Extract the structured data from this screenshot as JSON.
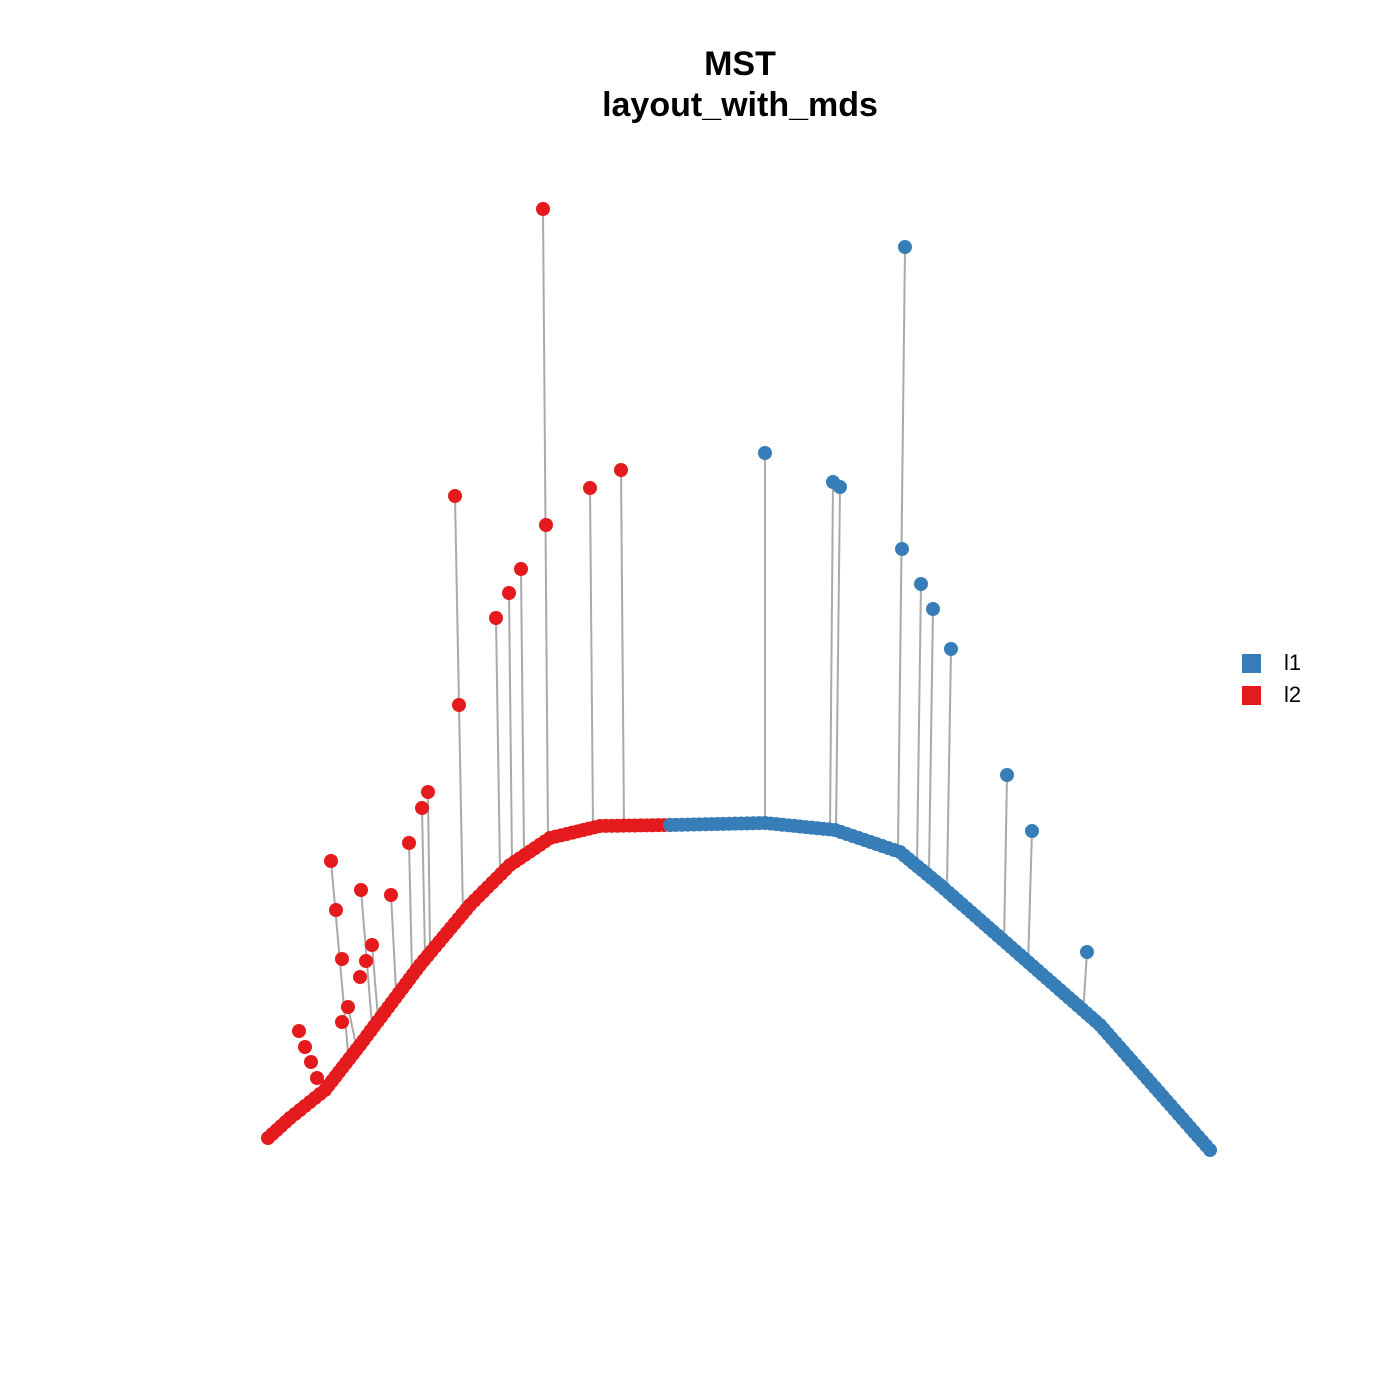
{
  "title": [
    "MST",
    "layout_with_mds"
  ],
  "legend": [
    {
      "label": "l1",
      "color": "#377eb8"
    },
    {
      "label": "l2",
      "color": "#e41a1c"
    }
  ]
}
